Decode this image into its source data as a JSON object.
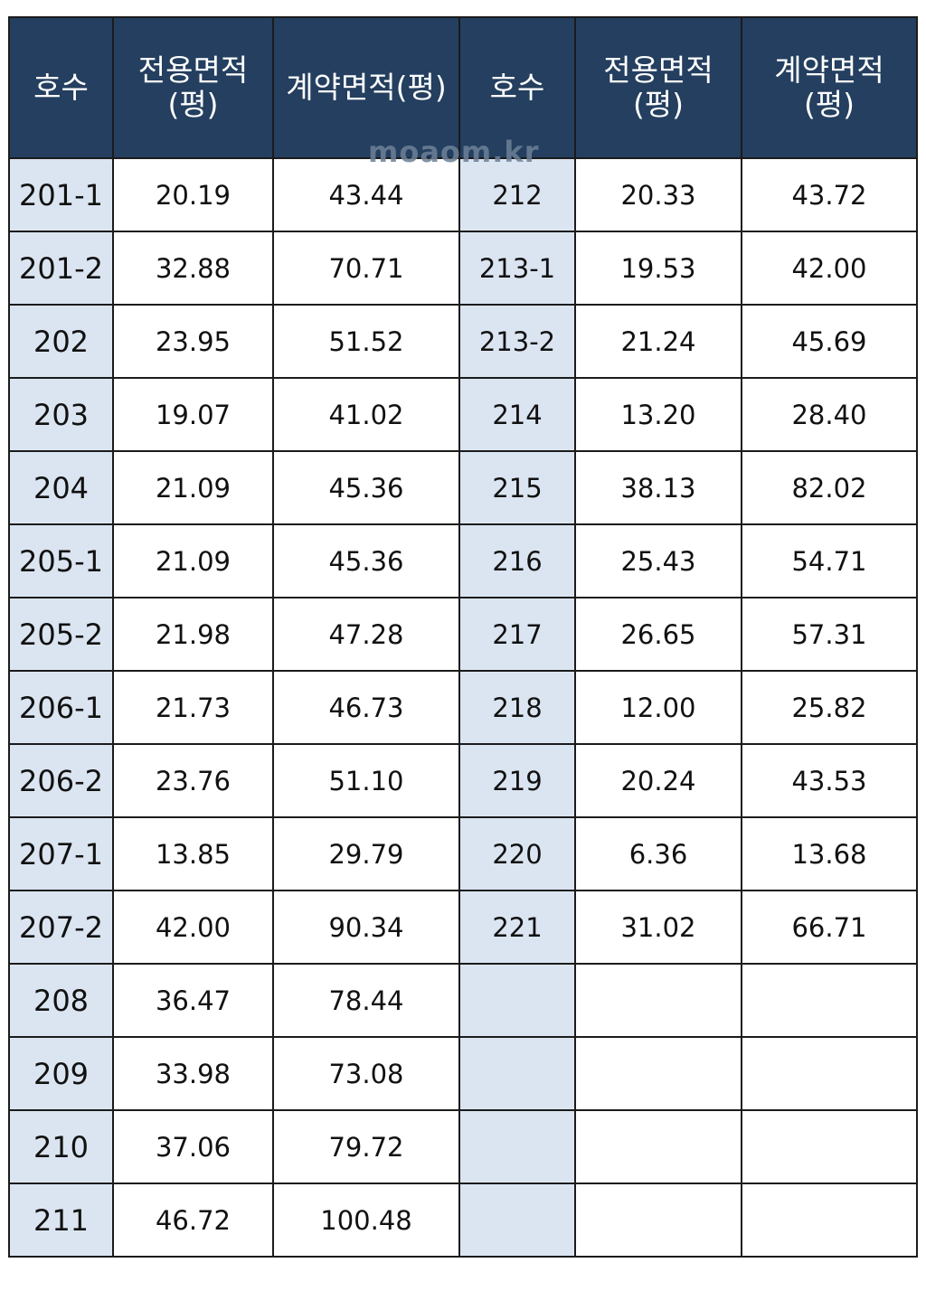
{
  "headers": {
    "left": {
      "hosu": "호수",
      "exclusive_area_line1": "전용면적",
      "exclusive_area_line2": "(평)",
      "contract_area": "계약면적(평)"
    },
    "right": {
      "hosu": "호수",
      "exclusive_area_line1": "전용면적",
      "exclusive_area_line2": "(평)",
      "contract_area_line1": "계약면적",
      "contract_area_line2": "(평)"
    }
  },
  "watermark": "moaom.kr",
  "rows": [
    {
      "l_hosu": "201-1",
      "l_excl": "20.19",
      "l_cont": "43.44",
      "r_hosu": "212",
      "r_excl": "20.33",
      "r_cont": "43.72"
    },
    {
      "l_hosu": "201-2",
      "l_excl": "32.88",
      "l_cont": "70.71",
      "r_hosu": "213-1",
      "r_excl": "19.53",
      "r_cont": "42.00"
    },
    {
      "l_hosu": "202",
      "l_excl": "23.95",
      "l_cont": "51.52",
      "r_hosu": "213-2",
      "r_excl": "21.24",
      "r_cont": "45.69"
    },
    {
      "l_hosu": "203",
      "l_excl": "19.07",
      "l_cont": "41.02",
      "r_hosu": "214",
      "r_excl": "13.20",
      "r_cont": "28.40"
    },
    {
      "l_hosu": "204",
      "l_excl": "21.09",
      "l_cont": "45.36",
      "r_hosu": "215",
      "r_excl": "38.13",
      "r_cont": "82.02"
    },
    {
      "l_hosu": "205-1",
      "l_excl": "21.09",
      "l_cont": "45.36",
      "r_hosu": "216",
      "r_excl": "25.43",
      "r_cont": "54.71"
    },
    {
      "l_hosu": "205-2",
      "l_excl": "21.98",
      "l_cont": "47.28",
      "r_hosu": "217",
      "r_excl": "26.65",
      "r_cont": "57.31"
    },
    {
      "l_hosu": "206-1",
      "l_excl": "21.73",
      "l_cont": "46.73",
      "r_hosu": "218",
      "r_excl": "12.00",
      "r_cont": "25.82"
    },
    {
      "l_hosu": "206-2",
      "l_excl": "23.76",
      "l_cont": "51.10",
      "r_hosu": "219",
      "r_excl": "20.24",
      "r_cont": "43.53"
    },
    {
      "l_hosu": "207-1",
      "l_excl": "13.85",
      "l_cont": "29.79",
      "r_hosu": "220",
      "r_excl": "6.36",
      "r_cont": "13.68"
    },
    {
      "l_hosu": "207-2",
      "l_excl": "42.00",
      "l_cont": "90.34",
      "r_hosu": "221",
      "r_excl": "31.02",
      "r_cont": "66.71"
    },
    {
      "l_hosu": "208",
      "l_excl": "36.47",
      "l_cont": "78.44",
      "r_hosu": "",
      "r_excl": "",
      "r_cont": ""
    },
    {
      "l_hosu": "209",
      "l_excl": "33.98",
      "l_cont": "73.08",
      "r_hosu": "",
      "r_excl": "",
      "r_cont": ""
    },
    {
      "l_hosu": "210",
      "l_excl": "37.06",
      "l_cont": "79.72",
      "r_hosu": "",
      "r_excl": "",
      "r_cont": ""
    },
    {
      "l_hosu": "211",
      "l_excl": "46.72",
      "l_cont": "100.48",
      "r_hosu": "",
      "r_excl": "",
      "r_cont": ""
    }
  ]
}
